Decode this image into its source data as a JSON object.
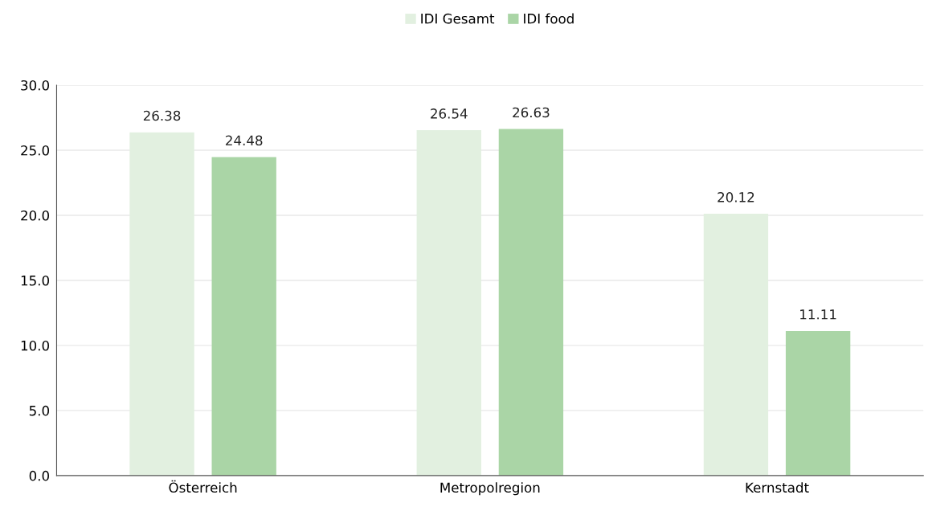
{
  "chart_data": {
    "type": "bar",
    "categories": [
      "Österreich",
      "Metropolregion",
      "Kernstadt"
    ],
    "series": [
      {
        "name": "IDI Gesamt",
        "color": "#e2f0e0",
        "values": [
          26.38,
          26.54,
          20.12
        ]
      },
      {
        "name": "IDI food",
        "color": "#aad5a6",
        "values": [
          24.48,
          26.63,
          11.11
        ]
      }
    ],
    "ylim": [
      0,
      30
    ],
    "yticks": [
      {
        "value": 0,
        "label": "0.0"
      },
      {
        "value": 5,
        "label": "5.0"
      },
      {
        "value": 10,
        "label": "10.0"
      },
      {
        "value": 15,
        "label": "15.0"
      },
      {
        "value": 20,
        "label": "20.0"
      },
      {
        "value": 25,
        "label": "25.0"
      },
      {
        "value": 30,
        "label": "30.0"
      }
    ],
    "grid": "y",
    "legend": "top",
    "data_labels": true
  }
}
